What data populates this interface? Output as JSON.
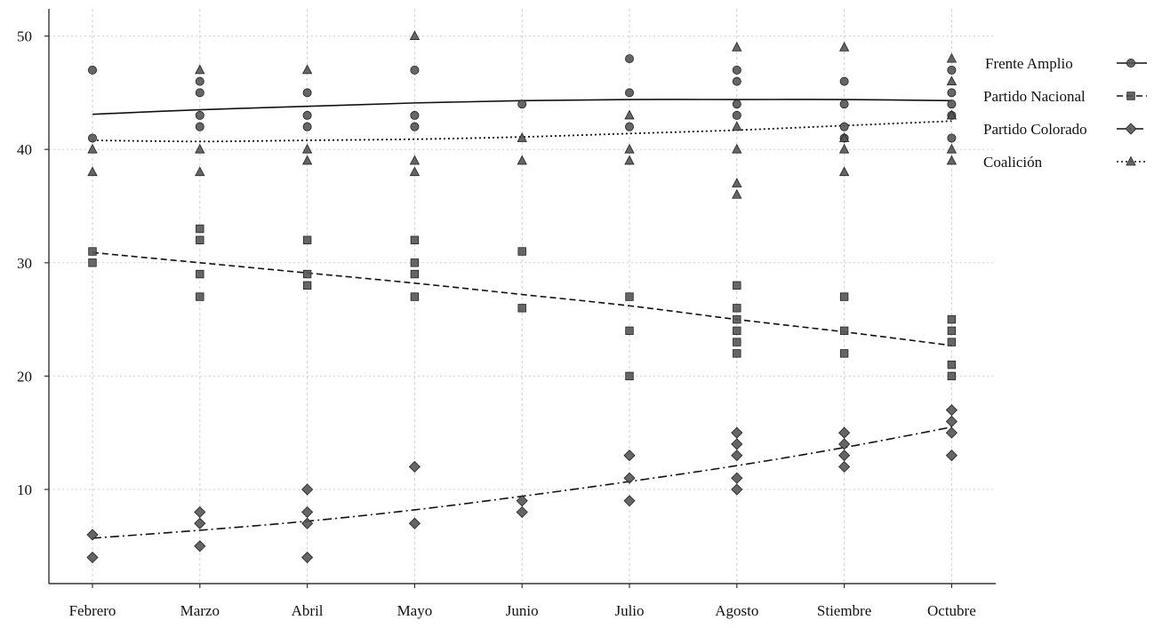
{
  "chart_data": {
    "type": "scatter",
    "title": "",
    "xlabel": "",
    "ylabel": "",
    "categories": [
      "Febrero",
      "Marzo",
      "Abril",
      "Mayo",
      "Junio",
      "Julio",
      "Agosto",
      "Stiembre",
      "Octubre"
    ],
    "y_ticks": [
      10,
      20,
      30,
      40,
      50
    ],
    "ylim": [
      2,
      51
    ],
    "grid": true,
    "legend_position": "right",
    "series": [
      {
        "name": "Frente Amplio",
        "marker": "circle",
        "line_style": "solid",
        "points": [
          [
            0,
            47
          ],
          [
            0,
            41
          ],
          [
            1,
            46
          ],
          [
            1,
            45
          ],
          [
            1,
            43
          ],
          [
            1,
            42
          ],
          [
            2,
            45
          ],
          [
            2,
            43
          ],
          [
            2,
            42
          ],
          [
            3,
            47
          ],
          [
            3,
            43
          ],
          [
            3,
            42
          ],
          [
            4,
            44
          ],
          [
            5,
            48
          ],
          [
            5,
            45
          ],
          [
            5,
            42
          ],
          [
            6,
            47
          ],
          [
            6,
            46
          ],
          [
            6,
            44
          ],
          [
            6,
            43
          ],
          [
            7,
            46
          ],
          [
            7,
            44
          ],
          [
            7,
            42
          ],
          [
            7,
            41
          ],
          [
            8,
            47
          ],
          [
            8,
            45
          ],
          [
            8,
            44
          ],
          [
            8,
            43
          ],
          [
            8,
            41
          ]
        ],
        "trend": [
          43.1,
          43.5,
          43.8,
          44.1,
          44.3,
          44.4,
          44.4,
          44.4,
          44.3
        ]
      },
      {
        "name": "Partido Nacional",
        "marker": "square",
        "line_style": "dashed",
        "points": [
          [
            0,
            31
          ],
          [
            0,
            30
          ],
          [
            1,
            33
          ],
          [
            1,
            32
          ],
          [
            1,
            29
          ],
          [
            1,
            27
          ],
          [
            2,
            32
          ],
          [
            2,
            29
          ],
          [
            2,
            28
          ],
          [
            3,
            32
          ],
          [
            3,
            30
          ],
          [
            3,
            29
          ],
          [
            3,
            27
          ],
          [
            4,
            31
          ],
          [
            4,
            26
          ],
          [
            5,
            27
          ],
          [
            5,
            24
          ],
          [
            5,
            20
          ],
          [
            6,
            28
          ],
          [
            6,
            26
          ],
          [
            6,
            25
          ],
          [
            6,
            24
          ],
          [
            6,
            23
          ],
          [
            6,
            22
          ],
          [
            7,
            27
          ],
          [
            7,
            24
          ],
          [
            7,
            22
          ],
          [
            8,
            25
          ],
          [
            8,
            24
          ],
          [
            8,
            23
          ],
          [
            8,
            21
          ],
          [
            8,
            20
          ]
        ],
        "trend": [
          30.9,
          30.0,
          29.1,
          28.2,
          27.2,
          26.2,
          25.0,
          23.9,
          22.7
        ]
      },
      {
        "name": "Partido Colorado",
        "marker": "diamond",
        "line_style": "dash-dot",
        "points": [
          [
            0,
            6
          ],
          [
            0,
            4
          ],
          [
            1,
            8
          ],
          [
            1,
            7
          ],
          [
            1,
            5
          ],
          [
            2,
            10
          ],
          [
            2,
            8
          ],
          [
            2,
            7
          ],
          [
            2,
            4
          ],
          [
            3,
            12
          ],
          [
            3,
            7
          ],
          [
            4,
            9
          ],
          [
            4,
            8
          ],
          [
            5,
            13
          ],
          [
            5,
            11
          ],
          [
            5,
            9
          ],
          [
            6,
            15
          ],
          [
            6,
            14
          ],
          [
            6,
            13
          ],
          [
            6,
            11
          ],
          [
            6,
            10
          ],
          [
            7,
            15
          ],
          [
            7,
            14
          ],
          [
            7,
            13
          ],
          [
            7,
            12
          ],
          [
            8,
            17
          ],
          [
            8,
            16
          ],
          [
            8,
            15
          ],
          [
            8,
            13
          ]
        ],
        "trend": [
          5.7,
          6.4,
          7.2,
          8.2,
          9.4,
          10.7,
          12.1,
          13.7,
          15.5
        ]
      },
      {
        "name": "Coalición",
        "marker": "triangle",
        "line_style": "dotted",
        "points": [
          [
            0,
            40
          ],
          [
            0,
            38
          ],
          [
            1,
            47
          ],
          [
            1,
            40
          ],
          [
            1,
            38
          ],
          [
            2,
            47
          ],
          [
            2,
            40
          ],
          [
            2,
            39
          ],
          [
            3,
            50
          ],
          [
            3,
            39
          ],
          [
            3,
            38
          ],
          [
            4,
            41
          ],
          [
            4,
            39
          ],
          [
            5,
            43
          ],
          [
            5,
            40
          ],
          [
            5,
            39
          ],
          [
            6,
            49
          ],
          [
            6,
            42
          ],
          [
            6,
            40
          ],
          [
            6,
            37
          ],
          [
            6,
            36
          ],
          [
            7,
            49
          ],
          [
            7,
            41
          ],
          [
            7,
            40
          ],
          [
            7,
            38
          ],
          [
            8,
            48
          ],
          [
            8,
            46
          ],
          [
            8,
            43
          ],
          [
            8,
            40
          ],
          [
            8,
            39
          ]
        ],
        "trend": [
          40.8,
          40.7,
          40.8,
          40.9,
          41.1,
          41.4,
          41.7,
          42.1,
          42.5
        ]
      }
    ]
  },
  "colors": {
    "marker_fill": "#555555",
    "marker_stroke": "#222222",
    "trend_line": "#111111",
    "grid": "#cfcfcf",
    "axis": "#333333"
  }
}
